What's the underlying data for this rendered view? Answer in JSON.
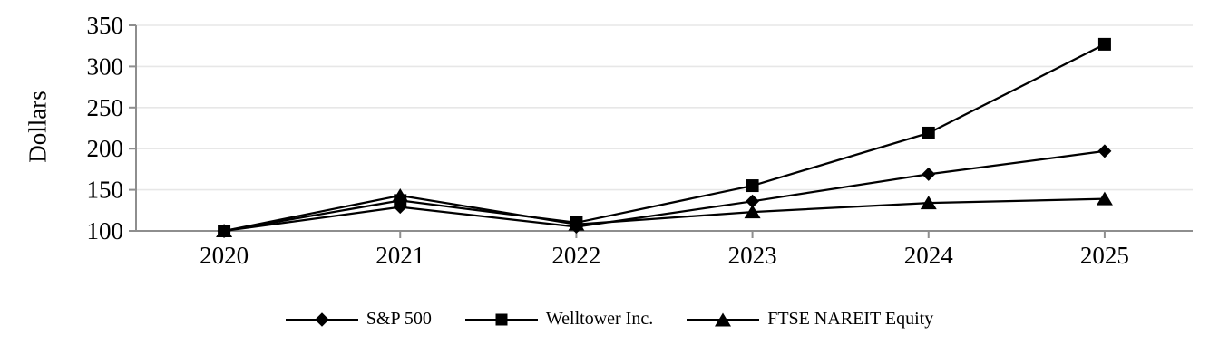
{
  "chart_data": {
    "type": "line",
    "ylabel": "Dollars",
    "xlabel": "",
    "categories": [
      "2020",
      "2021",
      "2022",
      "2023",
      "2024",
      "2025"
    ],
    "series": [
      {
        "name": "S&P 500",
        "marker": "diamond",
        "values": [
          100,
          129,
          105,
          136,
          169,
          197
        ]
      },
      {
        "name": "Welltower Inc.",
        "marker": "square",
        "values": [
          100,
          137,
          110,
          155,
          219,
          327
        ]
      },
      {
        "name": "FTSE NAREIT Equity",
        "marker": "triangle",
        "values": [
          100,
          143,
          108,
          123,
          134,
          139
        ]
      }
    ],
    "ylim": [
      100,
      350
    ],
    "yticks": [
      100,
      150,
      200,
      250,
      300,
      350
    ],
    "grid": true,
    "legend_position": "bottom",
    "colors": {
      "series": "#000000",
      "axis": "#8e8e8e",
      "gridline": "#e7e7e7"
    }
  }
}
